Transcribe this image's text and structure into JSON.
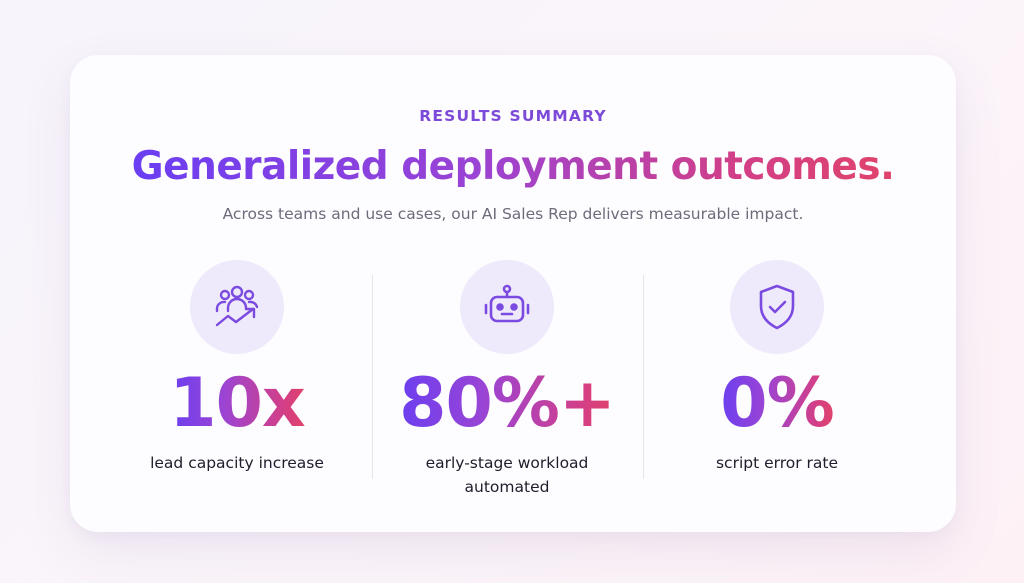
{
  "eyebrow": "RESULTS SUMMARY",
  "headline": "Generalized deployment outcomes.",
  "subtitle": "Across teams and use cases, our AI Sales Rep delivers measurable impact.",
  "colors": {
    "accent_purple": "#7c4ad9",
    "gradient_start": "#6a3ef2",
    "gradient_end": "#e0436a",
    "icon_circle": "#efeafb"
  },
  "stats": [
    {
      "icon": "team-growth-icon",
      "value": "10x",
      "label": "lead capacity increase"
    },
    {
      "icon": "robot-icon",
      "value": "80%+",
      "label": "early-stage workload automated"
    },
    {
      "icon": "shield-check-icon",
      "value": "0%",
      "label": "script error rate"
    }
  ]
}
